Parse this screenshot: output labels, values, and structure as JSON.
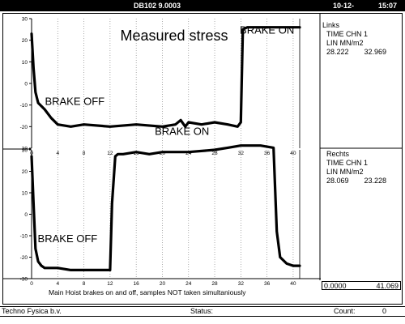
{
  "titlebar": {
    "left": "DB102  9.0003",
    "date": "10-12-",
    "time": "15:07"
  },
  "panel_links": {
    "heading": "Links",
    "line1": "TIME CHN 1",
    "line2": "LIN MN/m2",
    "val1": "28.222",
    "val2": "32.969"
  },
  "panel_rechts": {
    "heading": "Rechts",
    "line1": "TIME CHN 1",
    "line2": "LIN MN/m2",
    "val1": "28.069",
    "val2": "23.228"
  },
  "range": {
    "start": "0.0000",
    "end": "41.069"
  },
  "status_bar": {
    "company": "Techno Fysica b.v.",
    "status_label": "Status:",
    "count_label": "Count:",
    "count_value": "0"
  },
  "chart_data": [
    {
      "type": "line",
      "title": "Measured stress",
      "caption": "",
      "x_ticks": [
        "0",
        "4",
        "8",
        "12",
        "16",
        "20",
        "24",
        "28",
        "32",
        "36",
        "40"
      ],
      "y_ticks": [
        "30",
        "20",
        "10",
        "0",
        "-10",
        "-20",
        "-30"
      ],
      "xlim": [
        0,
        41
      ],
      "ylim": [
        -30,
        30
      ],
      "grid": true,
      "annotations": [
        {
          "text": "BRAKE OFF",
          "x": 6.6,
          "y": -10
        },
        {
          "text": "BRAKE ON",
          "x": 36,
          "y": 23
        }
      ],
      "series": [
        {
          "x": [
            0,
            0.3,
            0.6,
            1,
            2,
            3,
            4,
            6,
            8,
            12,
            16,
            20,
            22,
            22.8,
            23.5,
            24,
            26,
            28,
            30,
            31.5,
            32,
            32.3,
            33,
            36,
            38,
            40,
            41
          ],
          "y": [
            23,
            7,
            -4,
            -9,
            -12,
            -16,
            -19,
            -20,
            -19,
            -20,
            -19,
            -20,
            -19,
            -17,
            -20,
            -18,
            -19,
            -18,
            -19,
            -20,
            -18,
            25,
            26,
            26,
            26,
            26,
            26
          ]
        }
      ]
    },
    {
      "type": "line",
      "title": "",
      "caption": "Main Hoist brakes on and off, samples NOT taken simultaniously",
      "x_ticks": [
        "0",
        "4",
        "8",
        "12",
        "16",
        "20",
        "24",
        "28",
        "32",
        "36",
        "40"
      ],
      "y_ticks": [
        "30",
        "20",
        "10",
        "0",
        "-10",
        "-20",
        "-30"
      ],
      "xlim": [
        0,
        41
      ],
      "ylim": [
        -30,
        30
      ],
      "grid": true,
      "annotations": [
        {
          "text": "BRAKE ON",
          "x": 23,
          "y": 37
        },
        {
          "text": "BRAKE OFF",
          "x": 5.5,
          "y": -13
        }
      ],
      "series": [
        {
          "x": [
            0,
            0.3,
            0.6,
            1,
            1.5,
            2,
            4,
            6,
            8,
            10,
            12,
            12.3,
            12.8,
            13.2,
            14,
            16,
            18,
            20,
            24,
            28,
            30,
            32,
            35,
            37,
            37.5,
            38,
            39,
            40,
            41
          ],
          "y": [
            27,
            5,
            -16,
            -22,
            -24,
            -25,
            -25,
            -26,
            -26,
            -26,
            -26,
            5,
            27,
            28,
            28,
            29,
            28,
            29,
            29,
            30,
            31,
            32,
            32,
            31,
            -8,
            -20,
            -23,
            -24,
            -24
          ]
        }
      ]
    }
  ]
}
